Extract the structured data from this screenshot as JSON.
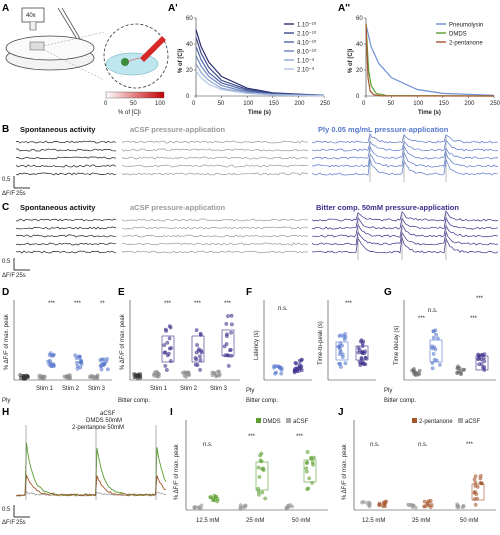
{
  "panels": {
    "A": {
      "label": "A",
      "objective": "40x",
      "colorbar_label": "% of [C]i",
      "colorbar_ticks": [
        "0",
        "50",
        "100"
      ]
    },
    "A1": {
      "label": "A'"
    },
    "A2": {
      "label": "A''"
    },
    "B": {
      "label": "B",
      "t1": "Spontaneous activity",
      "t2": "aCSF pressure-application",
      "t3": "Ply 0.05 mg/mL pressure-application"
    },
    "C": {
      "label": "C",
      "t1": "Spontaneous activity",
      "t2": "aCSF pressure-application",
      "t3": "Bitter comp. 50mM pressure-application"
    },
    "D": {
      "label": "D",
      "ylabel": "% ΔF/F of max. peak",
      "xcats": [
        "Stim 1",
        "Stim 2",
        "Stim 3"
      ],
      "row_label": "Ply",
      "sig": [
        "***",
        "***",
        "**"
      ]
    },
    "E": {
      "label": "E",
      "ylabel": "% ΔF/F of max. peak",
      "xcats": [
        "Stim 1",
        "Stim 2",
        "Stim 3"
      ],
      "row_label": "Bitter comp.",
      "sig": [
        "***",
        "***",
        "***"
      ]
    },
    "F": {
      "label": "F",
      "ylabel1": "Latency (s)",
      "ylabel2": "Time-to-peak (s)",
      "row1": "Ply",
      "row2": "Bitter comp.",
      "sig1": "n.s.",
      "sig2": "***"
    },
    "G": {
      "label": "G",
      "ylabel": "Time decay (s)",
      "row1": "Ply",
      "row2": "Bitter comp.",
      "sig": [
        "***",
        "n.s.",
        "***",
        "***"
      ]
    },
    "H": {
      "label": "H",
      "legend": [
        "aCSF",
        "DMDS 50mM",
        "2-pentanone 50mM"
      ]
    },
    "I": {
      "label": "I",
      "ylabel": "% ΔF/F of max. peak",
      "legend": [
        "DMDS",
        "aCSF"
      ],
      "xcats": [
        "12.5 mM",
        "25 mM",
        "50 mM"
      ],
      "sig": [
        "n.s.",
        "***",
        "***"
      ]
    },
    "J": {
      "label": "J",
      "ylabel": "% ΔF/F of max. peak",
      "legend": [
        "2-pentanone",
        "aCSF"
      ],
      "xcats": [
        "12.5 mM",
        "25 mM",
        "50 mM"
      ],
      "sig": [
        "n.s.",
        "n.s.",
        "***"
      ]
    }
  },
  "scale": {
    "dff": "0.5",
    "dff_unit": "ΔF/F",
    "time": "25s"
  },
  "chart_data": [
    {
      "type": "line",
      "title": "",
      "xlabel": "Time (s)",
      "ylabel": "% of [C]i",
      "xlim": [
        0,
        250
      ],
      "ylim": [
        0,
        60
      ],
      "xticks": [
        "0",
        "50",
        "100",
        "150",
        "200",
        "250"
      ],
      "yticks": [
        "0",
        "20",
        "40",
        "60"
      ],
      "legend_position": "top-right",
      "series": [
        {
          "name": "1.10⁻¹⁰",
          "color": "#2b2f6e",
          "values_at_x": [
            [
              0,
              51
            ],
            [
              10,
              38
            ],
            [
              25,
              26
            ],
            [
              50,
              15
            ],
            [
              100,
              6
            ],
            [
              150,
              2.5
            ],
            [
              250,
              0.5
            ]
          ]
        },
        {
          "name": "2.10⁻¹⁰",
          "color": "#3d4a8a",
          "values_at_x": [
            [
              0,
              45
            ],
            [
              10,
              33
            ],
            [
              25,
              22
            ],
            [
              50,
              12
            ],
            [
              100,
              5
            ],
            [
              150,
              2
            ],
            [
              250,
              0.4
            ]
          ]
        },
        {
          "name": "4.10⁻¹⁰",
          "color": "#5066a6",
          "values_at_x": [
            [
              0,
              38
            ],
            [
              10,
              28
            ],
            [
              25,
              18
            ],
            [
              50,
              10
            ],
            [
              100,
              4
            ],
            [
              150,
              1.5
            ],
            [
              250,
              0.3
            ]
          ]
        },
        {
          "name": "8.10⁻¹⁰",
          "color": "#6c86bf",
          "values_at_x": [
            [
              0,
              31
            ],
            [
              10,
              23
            ],
            [
              25,
              15
            ],
            [
              50,
              8
            ],
            [
              100,
              3
            ],
            [
              150,
              1.2
            ],
            [
              250,
              0.2
            ]
          ]
        },
        {
          "name": "1.10⁻⁹",
          "color": "#8ea6d4",
          "values_at_x": [
            [
              0,
              25
            ],
            [
              10,
              18
            ],
            [
              25,
              12
            ],
            [
              50,
              6
            ],
            [
              100,
              2.5
            ],
            [
              150,
              1
            ],
            [
              250,
              0.2
            ]
          ]
        },
        {
          "name": "2.10⁻⁹",
          "color": "#b3c6e6",
          "values_at_x": [
            [
              0,
              19
            ],
            [
              10,
              14
            ],
            [
              25,
              9
            ],
            [
              50,
              5
            ],
            [
              100,
              2
            ],
            [
              150,
              0.8
            ],
            [
              250,
              0.1
            ]
          ]
        }
      ]
    },
    {
      "type": "line",
      "title": "",
      "xlabel": "Time (s)",
      "ylabel": "% of [C]i",
      "xlim": [
        0,
        250
      ],
      "ylim": [
        0,
        60
      ],
      "xticks": [
        "0",
        "50",
        "100",
        "150",
        "200",
        "250"
      ],
      "yticks": [
        "0",
        "20",
        "40",
        "60"
      ],
      "legend_position": "top-right",
      "series": [
        {
          "name": "Pneumolysin",
          "color": "#6f8fd6",
          "values_at_x": [
            [
              0,
              55
            ],
            [
              10,
              38
            ],
            [
              25,
              25
            ],
            [
              50,
              14
            ],
            [
              100,
              5
            ],
            [
              150,
              2
            ],
            [
              250,
              0.5
            ]
          ]
        },
        {
          "name": "DMDS",
          "color": "#5a9e2f",
          "values_at_x": [
            [
              0,
              55
            ],
            [
              5,
              20
            ],
            [
              10,
              8
            ],
            [
              20,
              2
            ],
            [
              40,
              0.3
            ],
            [
              250,
              0
            ]
          ]
        },
        {
          "name": "2-pentanone",
          "color": "#a5542b",
          "values_at_x": [
            [
              0,
              55
            ],
            [
              4,
              14
            ],
            [
              8,
              4
            ],
            [
              15,
              1
            ],
            [
              30,
              0.1
            ],
            [
              250,
              0
            ]
          ]
        }
      ]
    }
  ]
}
